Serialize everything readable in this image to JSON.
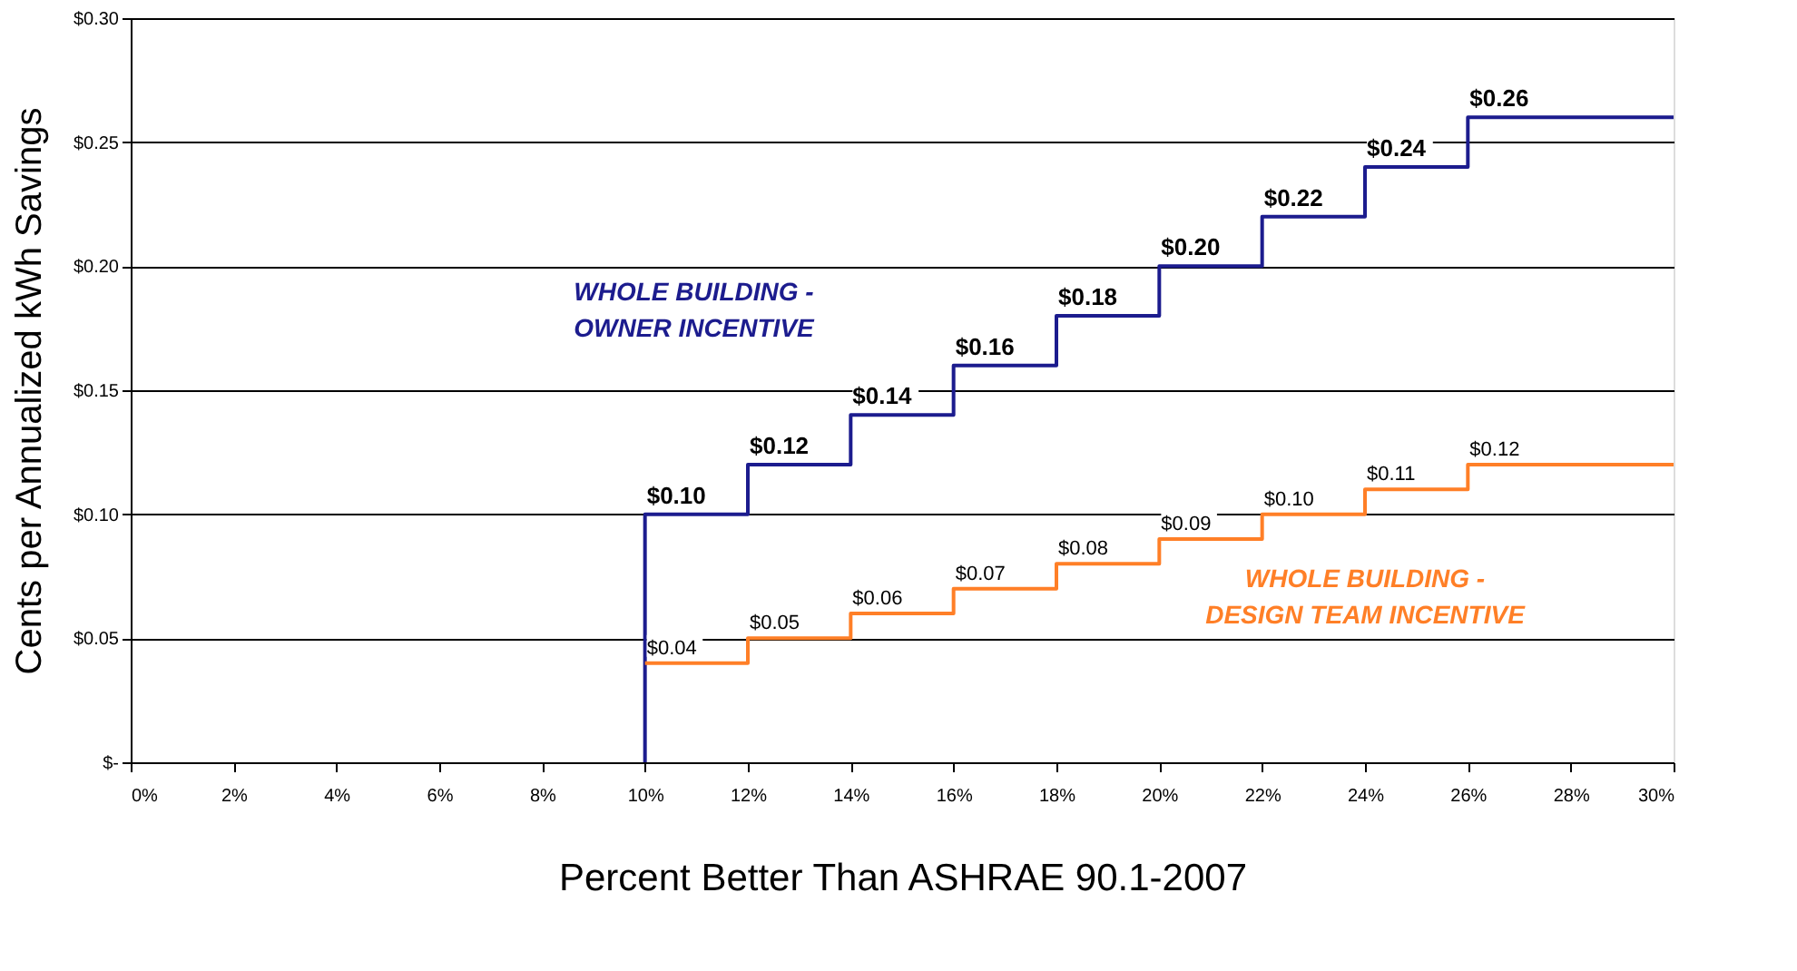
{
  "chart_data": {
    "type": "step",
    "xlabel": "Percent Better Than ASHRAE 90.1-2007",
    "ylabel": "Cents per Annualized kWh Savings",
    "x": [
      10,
      12,
      14,
      16,
      18,
      20,
      22,
      24,
      26,
      30
    ],
    "series": [
      {
        "name": "WHOLE BUILDING -\nOWNER INCENTIVE",
        "color": "#1c1c8e",
        "x": [
          10,
          10,
          12,
          14,
          16,
          18,
          20,
          22,
          24,
          26,
          30
        ],
        "values": [
          0,
          0.1,
          0.12,
          0.14,
          0.16,
          0.18,
          0.2,
          0.22,
          0.24,
          0.26,
          0.26
        ],
        "value_labels": [
          null,
          "$0.10",
          "$0.12",
          "$0.14",
          "$0.16",
          "$0.18",
          "$0.20",
          "$0.22",
          "$0.24",
          "$0.26",
          null
        ]
      },
      {
        "name": "WHOLE BUILDING -\nDESIGN TEAM INCENTIVE",
        "color": "#ff7f27",
        "values": [
          0.04,
          0.05,
          0.06,
          0.07,
          0.08,
          0.09,
          0.1,
          0.11,
          0.12,
          0.12
        ],
        "value_labels": [
          "$0.04",
          "$0.05",
          "$0.06",
          "$0.07",
          "$0.08",
          "$0.09",
          "$0.10",
          "$0.11",
          "$0.12",
          null
        ]
      }
    ],
    "xlim": [
      0,
      30
    ],
    "xticks": [
      {
        "value": 0,
        "label": "0%"
      },
      {
        "value": 2,
        "label": "2%"
      },
      {
        "value": 4,
        "label": "4%"
      },
      {
        "value": 6,
        "label": "6%"
      },
      {
        "value": 8,
        "label": "8%"
      },
      {
        "value": 10,
        "label": "10%"
      },
      {
        "value": 12,
        "label": "12%"
      },
      {
        "value": 14,
        "label": "14%"
      },
      {
        "value": 16,
        "label": "16%"
      },
      {
        "value": 18,
        "label": "18%"
      },
      {
        "value": 20,
        "label": "20%"
      },
      {
        "value": 22,
        "label": "22%"
      },
      {
        "value": 24,
        "label": "24%"
      },
      {
        "value": 26,
        "label": "26%"
      },
      {
        "value": 28,
        "label": "28%"
      },
      {
        "value": 30,
        "label": "30%"
      }
    ],
    "ylim": [
      0,
      0.3
    ],
    "yticks": [
      {
        "value": 0,
        "label": "$-"
      },
      {
        "value": 0.05,
        "label": "$0.05"
      },
      {
        "value": 0.1,
        "label": "$0.10"
      },
      {
        "value": 0.15,
        "label": "$0.15"
      },
      {
        "value": 0.2,
        "label": "$0.20"
      },
      {
        "value": 0.25,
        "label": "$0.25"
      },
      {
        "value": 0.3,
        "label": "$0.30"
      }
    ],
    "grid": "y",
    "line_style": "solid",
    "marker": "none"
  }
}
